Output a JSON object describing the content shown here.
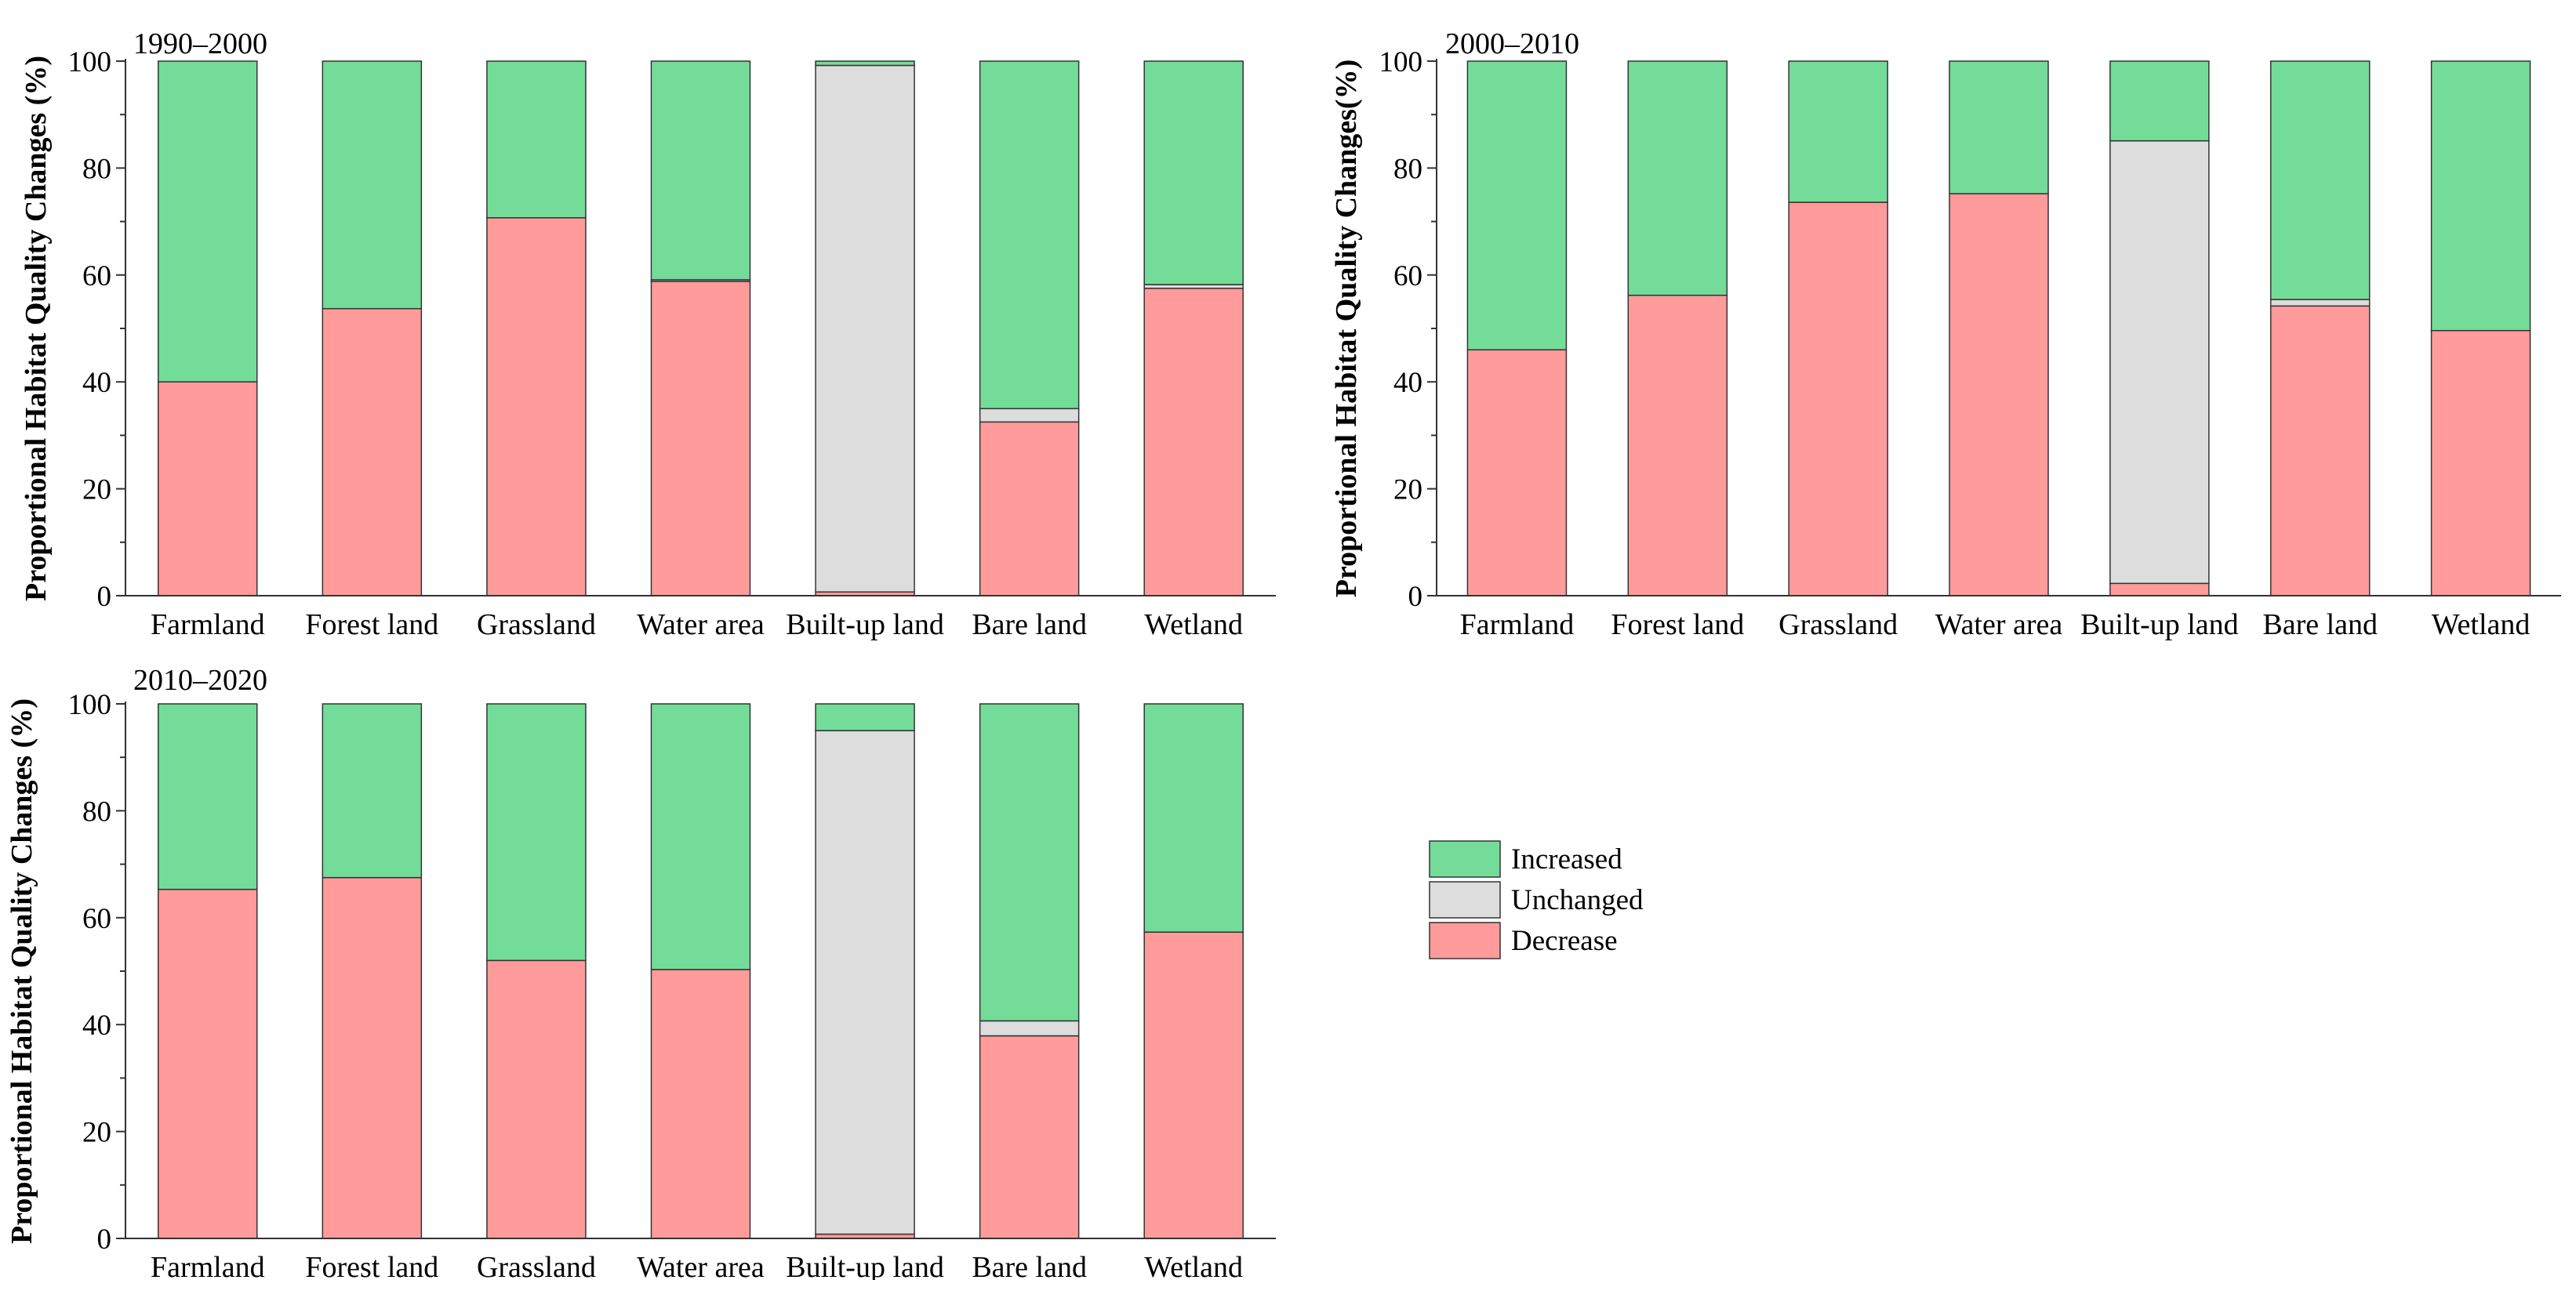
{
  "colors": {
    "Increased": "#74DC99",
    "Unchanged": "#DDDDDD",
    "Decrease": "#FF9B9B",
    "stroke": "#333333"
  },
  "legend": {
    "items": [
      {
        "name": "Increased",
        "color": "#74DC99"
      },
      {
        "name": "Unchanged",
        "color": "#DDDDDD"
      },
      {
        "name": "Decrease",
        "color": "#FF9B9B"
      }
    ]
  },
  "chart_data": [
    {
      "type": "bar",
      "stacked": true,
      "title": "1990–2000",
      "ylabel": "Proportional Habitat Quality Changes (%)",
      "xlabel": "",
      "ylim": [
        0,
        100
      ],
      "yticks": [
        0,
        20,
        40,
        60,
        80,
        100
      ],
      "categories": [
        "Farmland",
        "Forest land",
        "Grassland",
        "Water area",
        "Built-up land",
        "Bare land",
        "Wetland"
      ],
      "series": [
        {
          "name": "Decrease",
          "values": [
            40,
            53.7,
            70.7,
            58.8,
            0.7,
            32.5,
            57.5
          ]
        },
        {
          "name": "Unchanged",
          "values": [
            0,
            0,
            0,
            0.3,
            98.5,
            2.5,
            0.7
          ]
        },
        {
          "name": "Increased",
          "values": [
            60,
            46.3,
            29.3,
            40.9,
            0.8,
            65,
            41.8
          ]
        }
      ]
    },
    {
      "type": "bar",
      "stacked": true,
      "title": "2000–2010",
      "ylabel": "Proportional Habitat Quality Changes(%)",
      "xlabel": "",
      "ylim": [
        0,
        100
      ],
      "yticks": [
        0,
        20,
        40,
        60,
        80,
        100
      ],
      "categories": [
        "Farmland",
        "Forest land",
        "Grassland",
        "Water area",
        "Built-up land",
        "Bare land",
        "Wetland"
      ],
      "series": [
        {
          "name": "Decrease",
          "values": [
            46,
            56.2,
            73.6,
            75.2,
            2.3,
            54.2,
            49.6
          ]
        },
        {
          "name": "Unchanged",
          "values": [
            0,
            0,
            0,
            0,
            82.8,
            1.2,
            0
          ]
        },
        {
          "name": "Increased",
          "values": [
            54,
            43.8,
            26.4,
            24.8,
            14.9,
            44.6,
            50.4
          ]
        }
      ]
    },
    {
      "type": "bar",
      "stacked": true,
      "title": "2010–2020",
      "ylabel": "Proportional Habitat Quality Changes (%)",
      "xlabel": "",
      "ylim": [
        0,
        100
      ],
      "yticks": [
        0,
        20,
        40,
        60,
        80,
        100
      ],
      "categories": [
        "Farmland",
        "Forest land",
        "Grassland",
        "Water area",
        "Built-up land",
        "Bare land",
        "Wetland"
      ],
      "series": [
        {
          "name": "Decrease",
          "values": [
            65.3,
            67.5,
            52,
            50.3,
            0.8,
            37.9,
            57.3
          ]
        },
        {
          "name": "Unchanged",
          "values": [
            0,
            0,
            0,
            0,
            94.2,
            2.8,
            0
          ]
        },
        {
          "name": "Increased",
          "values": [
            34.7,
            32.5,
            48,
            49.7,
            5,
            59.3,
            42.7
          ]
        }
      ]
    }
  ]
}
